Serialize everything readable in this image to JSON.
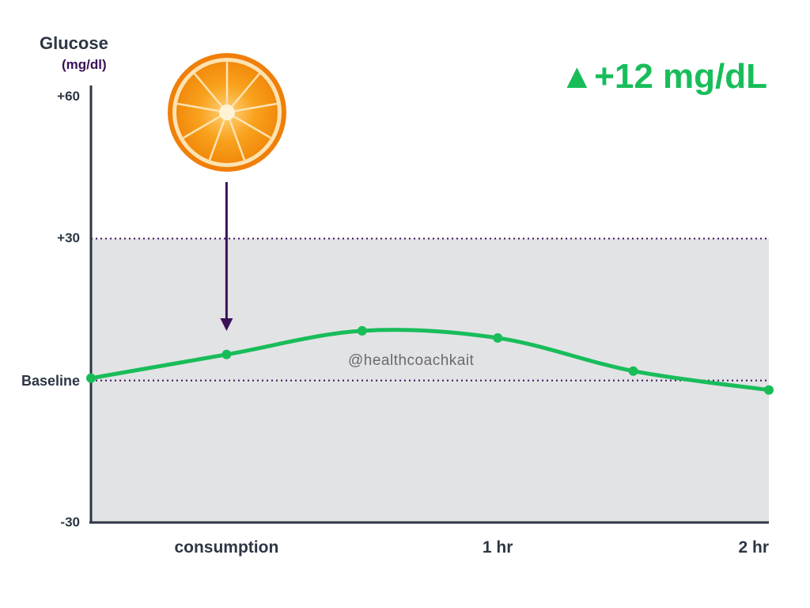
{
  "chart_data": {
    "type": "line",
    "title": "",
    "ylabel": "Glucose",
    "yunit": "(mg/dl)",
    "ylim": [
      -30,
      60
    ],
    "y_ticks": [
      {
        "value": 60,
        "label": "+60"
      },
      {
        "value": 30,
        "label": "+30"
      },
      {
        "value": 0,
        "label": "Baseline"
      },
      {
        "value": -30,
        "label": "-30"
      }
    ],
    "xlim_minutes": [
      -30,
      120
    ],
    "x_ticks": [
      {
        "value": 0,
        "label": "consumption"
      },
      {
        "value": 60,
        "label": "1 hr"
      },
      {
        "value": 120,
        "label": "2 hr"
      }
    ],
    "series": [
      {
        "color": "#18bd5a",
        "points": [
          {
            "x": -30,
            "y": 0.5
          },
          {
            "x": 0,
            "y": 5.5
          },
          {
            "x": 30,
            "y": 10.5
          },
          {
            "x": 60,
            "y": 9
          },
          {
            "x": 90,
            "y": 2
          },
          {
            "x": 120,
            "y": -2
          }
        ]
      }
    ],
    "normal_range": [
      -30,
      30
    ],
    "annotation": {
      "text": "▲+12 mg/dL",
      "color": "#18bd5a"
    },
    "event_marker": {
      "x": 0,
      "icon": "orange-slice-icon",
      "arrow_color": "#3b1257"
    }
  },
  "watermark": "@healthcoachkait",
  "colors": {
    "line": "#18bd5a",
    "band": "#e2e3e5",
    "axis": "#2d3644",
    "accent": "#3b1257",
    "ref_line": "#3b1257"
  }
}
